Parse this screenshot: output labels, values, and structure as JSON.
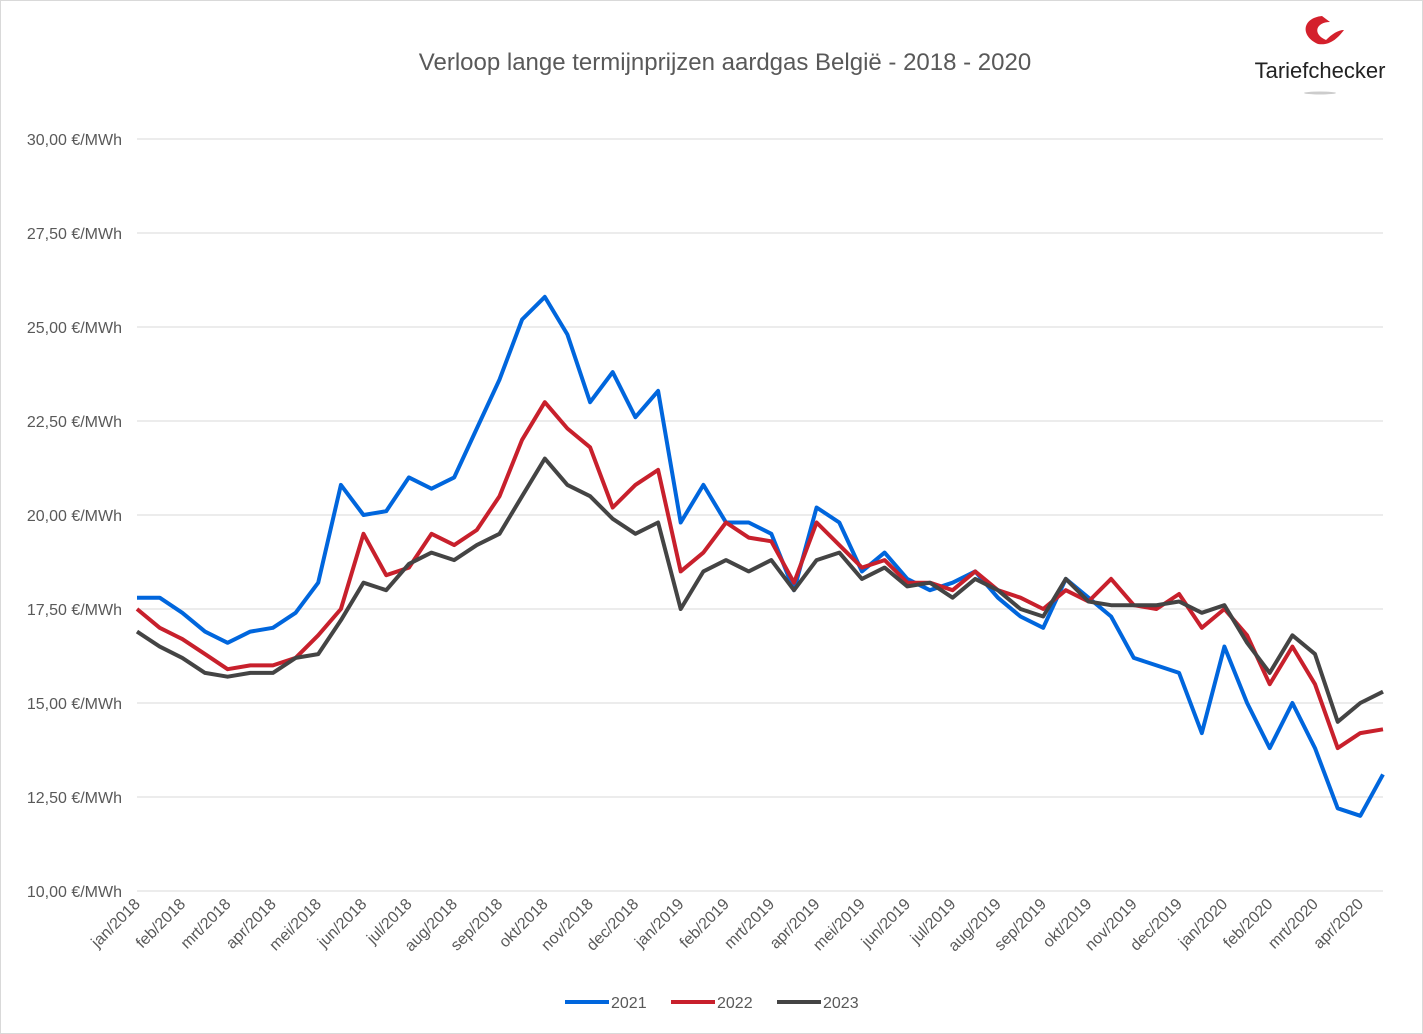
{
  "chart_data": {
    "type": "line",
    "title": "Verloop lange termijnprijzen aardgas België - 2018 - 2020",
    "logo": "Tariefchecker",
    "categories": [
      "jan/2018",
      null,
      "feb/2018",
      null,
      "mrt/2018",
      null,
      "apr/2018",
      null,
      "mei/2018",
      null,
      "jun/2018",
      null,
      "jul/2018",
      null,
      "aug/2018",
      null,
      "sep/2018",
      null,
      "okt/2018",
      null,
      "nov/2018",
      null,
      "dec/2018",
      null,
      "jan/2019",
      null,
      "feb/2019",
      null,
      "mrt/2019",
      null,
      "apr/2019",
      null,
      "mei/2019",
      null,
      "jun/2019",
      null,
      "jul/2019",
      null,
      "aug/2019",
      null,
      "sep/2019",
      null,
      "okt/2019",
      null,
      "nov/2019",
      null,
      "dec/2019",
      null,
      "jan/2020",
      null,
      "feb/2020",
      null,
      "mrt/2020",
      null,
      "apr/2020",
      null
    ],
    "series": [
      {
        "name": "2021",
        "color": "#0066dd",
        "values": [
          17.8,
          17.8,
          17.4,
          16.9,
          16.6,
          16.9,
          17.0,
          17.4,
          18.2,
          20.8,
          20.0,
          20.1,
          21.0,
          20.7,
          21.0,
          22.3,
          23.6,
          25.2,
          25.8,
          24.8,
          23.0,
          23.8,
          22.6,
          23.3,
          19.8,
          20.8,
          19.8,
          19.8,
          19.5,
          18.0,
          20.2,
          19.8,
          18.5,
          19.0,
          18.3,
          18.0,
          18.2,
          18.5,
          17.8,
          17.3,
          17.0,
          18.3,
          17.8,
          17.3,
          16.2,
          16.0,
          15.8,
          14.2,
          16.5,
          15.0,
          13.8,
          15.0,
          13.8,
          12.2,
          12.0,
          13.1
        ]
      },
      {
        "name": "2022",
        "color": "#c8202c",
        "values": [
          17.5,
          17.0,
          16.7,
          16.3,
          15.9,
          16.0,
          16.0,
          16.2,
          16.8,
          17.5,
          19.5,
          18.4,
          18.6,
          19.5,
          19.2,
          19.6,
          20.5,
          22.0,
          23.0,
          22.3,
          21.8,
          20.2,
          20.8,
          21.2,
          18.5,
          19.0,
          19.8,
          19.4,
          19.3,
          18.2,
          19.8,
          19.2,
          18.6,
          18.8,
          18.2,
          18.2,
          18.0,
          18.5,
          18.0,
          17.8,
          17.5,
          18.0,
          17.7,
          18.3,
          17.6,
          17.5,
          17.9,
          17.0,
          17.5,
          16.8,
          15.5,
          16.5,
          15.5,
          13.8,
          14.2,
          14.3
        ]
      },
      {
        "name": "2023",
        "color": "#444444",
        "values": [
          16.9,
          16.5,
          16.2,
          15.8,
          15.7,
          15.8,
          15.8,
          16.2,
          16.3,
          17.2,
          18.2,
          18.0,
          18.7,
          19.0,
          18.8,
          19.2,
          19.5,
          20.5,
          21.5,
          20.8,
          20.5,
          19.9,
          19.5,
          19.8,
          17.5,
          18.5,
          18.8,
          18.5,
          18.8,
          18.0,
          18.8,
          19.0,
          18.3,
          18.6,
          18.1,
          18.2,
          17.8,
          18.3,
          18.0,
          17.5,
          17.3,
          18.3,
          17.7,
          17.6,
          17.6,
          17.6,
          17.7,
          17.4,
          17.6,
          16.6,
          15.8,
          16.8,
          16.3,
          14.5,
          15.0,
          15.3
        ]
      }
    ],
    "ylim": [
      10,
      30
    ],
    "yticks": [
      {
        "value": 10,
        "label": "10,00 €/MWh"
      },
      {
        "value": 12.5,
        "label": "12,50 €/MWh"
      },
      {
        "value": 15,
        "label": "15,00 €/MWh"
      },
      {
        "value": 17.5,
        "label": "17,50 €/MWh"
      },
      {
        "value": 20,
        "label": "20,00 €/MWh"
      },
      {
        "value": 22.5,
        "label": "22,50 €/MWh"
      },
      {
        "value": 25,
        "label": "25,00 €/MWh"
      },
      {
        "value": 27.5,
        "label": "27,50 €/MWh"
      },
      {
        "value": 30,
        "label": "30,00 €/MWh"
      }
    ],
    "grid": true,
    "legend": "bottom"
  }
}
